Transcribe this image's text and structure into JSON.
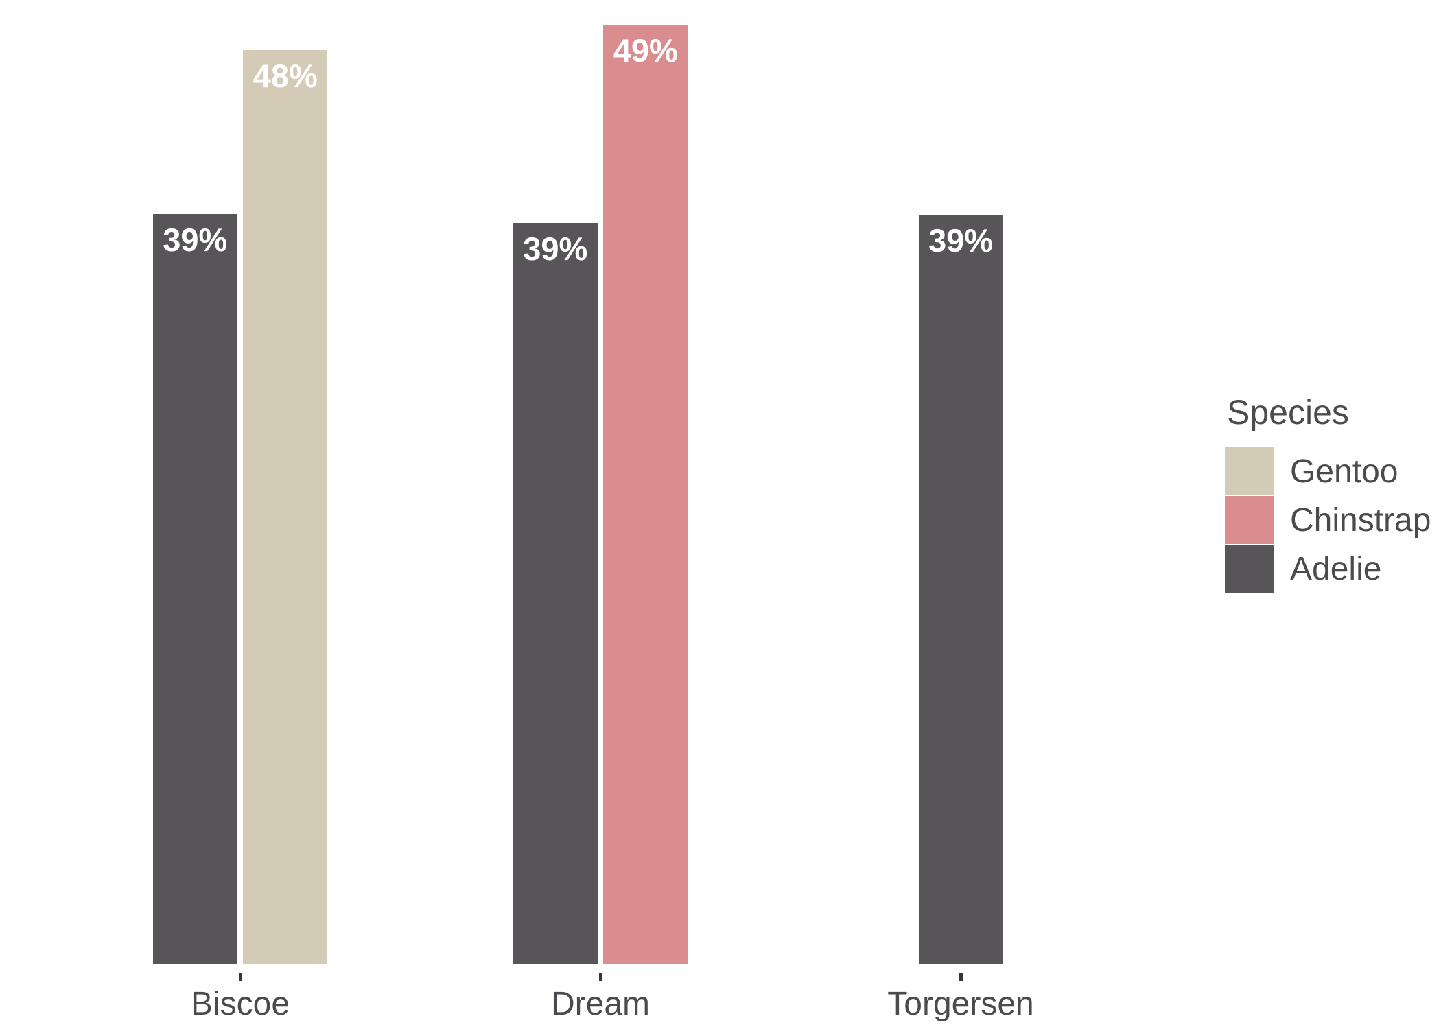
{
  "chart_data": {
    "type": "bar",
    "title": "",
    "xlabel": "",
    "ylabel": "",
    "categories": [
      "Biscoe",
      "Dream",
      "Torgersen"
    ],
    "groups": [
      {
        "category": "Biscoe",
        "bars": [
          {
            "species": "Adelie",
            "value": 38.98,
            "label": "39%"
          },
          {
            "species": "Gentoo",
            "value": 47.5,
            "label": "48%"
          }
        ]
      },
      {
        "category": "Dream",
        "bars": [
          {
            "species": "Adelie",
            "value": 38.5,
            "label": "39%"
          },
          {
            "species": "Chinstrap",
            "value": 48.83,
            "label": "49%"
          }
        ]
      },
      {
        "category": "Torgersen",
        "bars": [
          {
            "species": "Adelie",
            "value": 38.95,
            "label": "39%"
          }
        ]
      }
    ],
    "ylim": [
      0,
      50
    ],
    "grid": false,
    "y_axis_visible": false,
    "x_ticks_visible": true,
    "legend_position": "right",
    "legend": {
      "title": "Species",
      "entries": [
        {
          "name": "Gentoo",
          "color": "#d3cbb6"
        },
        {
          "name": "Chinstrap",
          "color": "#d98d8e"
        },
        {
          "name": "Adelie",
          "color": "#575558"
        }
      ]
    }
  },
  "colors": {
    "background": "#ffffff",
    "bar_label_text": "#ffffff",
    "axis_text": "#4a4a4f",
    "tick_mark": "#38373a",
    "gentoo": "#d3cbb6",
    "chinstrap": "#d98d8e",
    "adelie": "#575558"
  }
}
